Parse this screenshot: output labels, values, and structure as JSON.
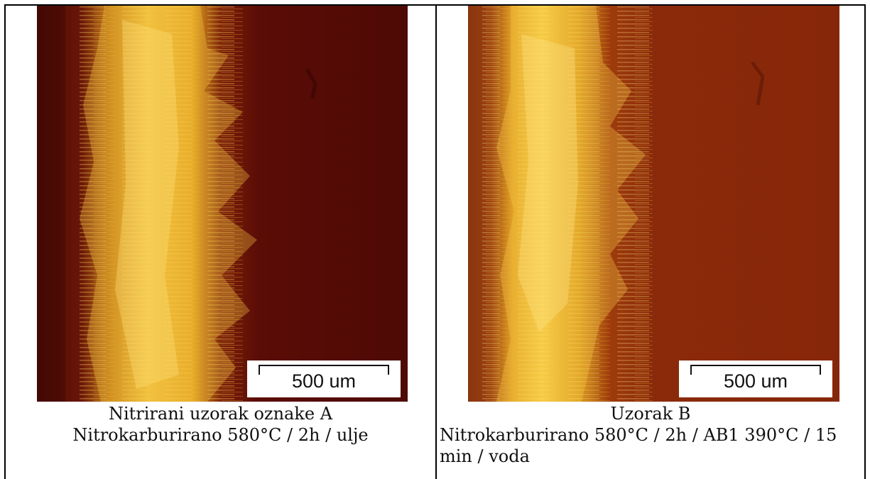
{
  "panels": [
    {
      "scale_bar": "500 um",
      "caption_line1": "Nitrirani uzorak oznake A",
      "caption_line2": "Nitrokarburirano 580°C / 2h / ulje",
      "colors": {
        "matrix": "#5a0c06",
        "layer": "#e8a820",
        "highlight": "#ffe070"
      }
    },
    {
      "scale_bar": "500 um",
      "caption_line1": "Uzorak B",
      "caption_line2": "Nitrokarburirano 580°C / 2h / AB1 390°C / 15 min / voda",
      "colors": {
        "matrix": "#8a2a0a",
        "layer": "#e9ac26",
        "highlight": "#ffe27a"
      }
    }
  ]
}
